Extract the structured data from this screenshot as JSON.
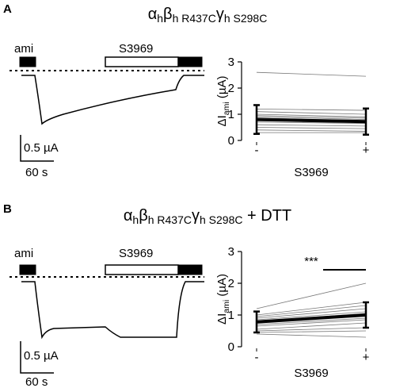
{
  "chart_data": [
    {
      "type": "paired-line",
      "panel_label": "A",
      "title": [
        "α",
        "h",
        "β",
        "h R437C",
        "γ",
        "h S298C"
      ],
      "trace_labels": {
        "ami": "ami",
        "drug": "S3969",
        "scale_current": "0.5 µA",
        "scale_time": "60 s"
      },
      "categories": [
        "-",
        "+"
      ],
      "xlabel": "S3969",
      "ylabel": [
        "ΔI",
        "ami",
        " (µA)"
      ],
      "ylim": [
        0,
        3
      ],
      "yticks": [
        0,
        1,
        2,
        3
      ],
      "individual": [
        [
          2.6,
          2.45
        ],
        [
          1.2,
          1.15
        ],
        [
          1.1,
          1.0
        ],
        [
          1.0,
          0.9
        ],
        [
          0.95,
          0.85
        ],
        [
          0.9,
          0.8
        ],
        [
          0.85,
          0.75
        ],
        [
          0.8,
          0.7
        ],
        [
          0.7,
          0.65
        ],
        [
          0.6,
          0.55
        ],
        [
          0.5,
          0.45
        ],
        [
          0.4,
          0.35
        ],
        [
          0.3,
          0.3
        ]
      ],
      "individual_color": "#777777",
      "mean": [
        0.8,
        0.72
      ],
      "error": [
        0.55,
        0.5
      ],
      "mean_color": "#000000"
    },
    {
      "type": "paired-line",
      "panel_label": "B",
      "title": [
        "α",
        "h",
        "β",
        "h R437C",
        "γ",
        "h S298C",
        " + DTT"
      ],
      "trace_labels": {
        "ami": "ami",
        "drug": "S3969",
        "scale_current": "0.5 µA",
        "scale_time": "60 s"
      },
      "categories": [
        "-",
        "+"
      ],
      "xlabel": "S3969",
      "ylabel": [
        "ΔI",
        "ami",
        " (µA)"
      ],
      "ylim": [
        0,
        3
      ],
      "yticks": [
        0,
        1,
        2,
        3
      ],
      "individual": [
        [
          1.2,
          2.0
        ],
        [
          1.0,
          1.4
        ],
        [
          0.95,
          1.3
        ],
        [
          0.9,
          1.2
        ],
        [
          0.85,
          1.1
        ],
        [
          0.8,
          1.05
        ],
        [
          0.75,
          1.0
        ],
        [
          0.7,
          0.9
        ],
        [
          0.65,
          0.85
        ],
        [
          0.55,
          0.75
        ],
        [
          0.5,
          0.6
        ],
        [
          0.45,
          0.5
        ],
        [
          0.4,
          0.3
        ]
      ],
      "individual_color": "#777777",
      "mean": [
        0.78,
        1.0
      ],
      "error": [
        0.33,
        0.4
      ],
      "mean_color": "#000000",
      "annotation": "***"
    }
  ]
}
